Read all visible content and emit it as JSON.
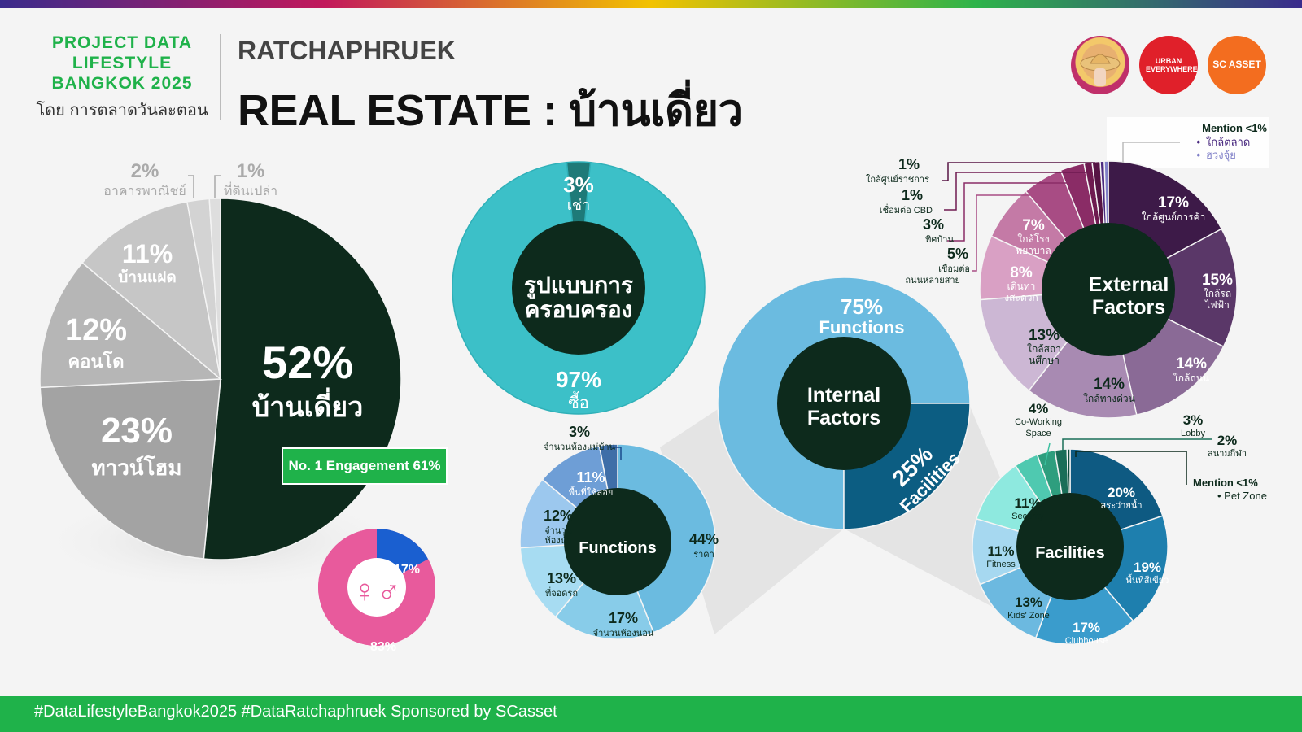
{
  "header": {
    "brand_line1": "PROJECT DATA",
    "brand_line2": "LIFESTYLE",
    "brand_line3": "BANGKOK 2025",
    "brand_by": "โดย การตลาดวันละตอน",
    "subtitle": "RATCHAPHRUEK",
    "title": "REAL ESTATE : บ้านเดี่ยว"
  },
  "logos": {
    "urban": "URBAN EVERYWHERE",
    "sc": "SC ASSET"
  },
  "badge": "No. 1 Engagement 61%",
  "footer": "#DataLifestyleBangkok2025 #DataRatchaphruek Sponsored by SCasset",
  "colors": {
    "green": "#1fb24a",
    "dark": "#0d2a1c",
    "teal": "#3cc0c8",
    "blue": "#6bbbe0",
    "purple": "#4a2550",
    "pink": "#e85a9c"
  },
  "chart_data": [
    {
      "type": "pie",
      "categories": [
        "บ้านเดี่ยว",
        "ทาวน์โฮม",
        "คอนโด",
        "บ้านแฝด",
        "อาคารพาณิชย์",
        "ที่ดินเปล่า"
      ],
      "values": [
        52,
        23,
        12,
        11,
        2,
        1
      ],
      "value_labels": [
        "52%",
        "23%",
        "12%",
        "11%",
        "2%",
        "1%"
      ]
    },
    {
      "type": "pie",
      "title": "รูปแบบการครอบครอง",
      "categories": [
        "เช่า",
        "ซื้อ"
      ],
      "values": [
        3,
        97
      ],
      "value_labels": [
        "3%",
        "97%"
      ]
    },
    {
      "type": "pie",
      "icon": "gender-icon",
      "categories": [
        "male",
        "female"
      ],
      "values": [
        17,
        83
      ],
      "value_labels": [
        "17%",
        "83%"
      ]
    },
    {
      "type": "pie",
      "title": "Internal Factors",
      "categories": [
        "Functions",
        "Facilities"
      ],
      "values": [
        75,
        25
      ],
      "value_labels": [
        "75%",
        "25%"
      ]
    },
    {
      "type": "pie",
      "title": "Functions",
      "categories": [
        "ราคา",
        "จำนวนห้องนอน",
        "ที่จอดรถ",
        "จำนวนห้องน้ำ",
        "พื้นที่ใช้สอย",
        "จำนวนห้องแม่บ้าน"
      ],
      "values": [
        44,
        17,
        13,
        12,
        11,
        3
      ],
      "value_labels": [
        "44%",
        "17%",
        "13%",
        "12%",
        "11%",
        "3%"
      ]
    },
    {
      "type": "pie",
      "title": "Facilities",
      "categories": [
        "สระว่ายน้ำ",
        "พื้นที่สีเขียว",
        "Clubhouse",
        "Kids' Zone",
        "Fitness",
        "Security",
        "Co-Working Space",
        "Lobby",
        "สนามกีฬา",
        "Pet Zone"
      ],
      "values": [
        20,
        19,
        17,
        13,
        11,
        11,
        4,
        3,
        2,
        0.5
      ],
      "value_labels": [
        "20%",
        "19%",
        "17%",
        "13%",
        "11%",
        "11%",
        "4%",
        "3%",
        "2%",
        ""
      ],
      "mention_title": "Mention <1%",
      "mention_items": [
        "Pet Zone"
      ]
    },
    {
      "type": "pie",
      "title": "External Factors",
      "categories": [
        "ใกล้ศูนย์การค้า",
        "ใกล้รถไฟฟ้า",
        "ใกล้ถนน",
        "ใกล้ทางด่วน",
        "ใกล้สถานศึกษา",
        "เดินทางสะดวก",
        "ใกล้โรงพยาบาล",
        "เชื่อมต่อถนนหลายสาย",
        "ทิศบ้าน",
        "เชื่อมต่อ CBD",
        "ใกล้ศูนย์ราชการ",
        "ใกล้ตลาด",
        "ฮวงจุ้ย"
      ],
      "values": [
        17,
        15,
        14,
        14,
        13,
        8,
        7,
        5,
        3,
        1,
        1,
        0.5,
        0.5
      ],
      "value_labels": [
        "17%",
        "15%",
        "14%",
        "14%",
        "13%",
        "8%",
        "7%",
        "5%",
        "3%",
        "1%",
        "1%",
        "",
        ""
      ],
      "mention_title": "Mention <1%",
      "mention_items": [
        "ใกล้ตลาด",
        "ฮวงจุ้ย"
      ]
    }
  ]
}
